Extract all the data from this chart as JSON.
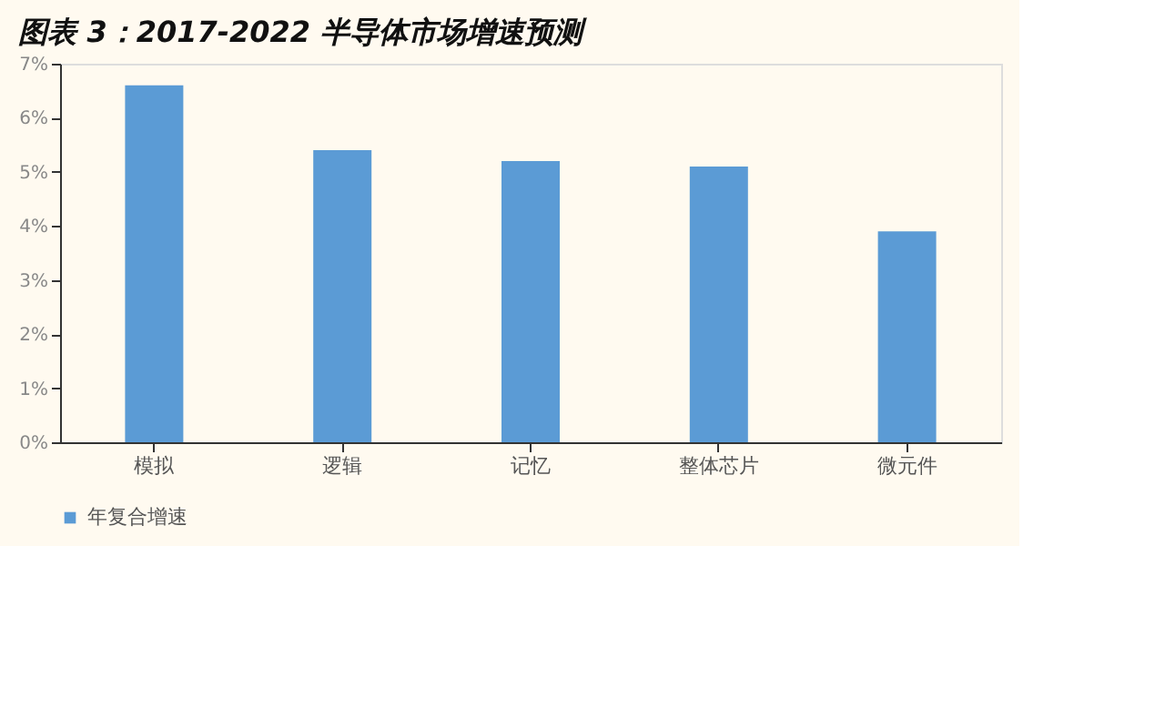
{
  "chart_data": {
    "type": "bar",
    "title": "图表 3：2017-2022 半导体市场增速预测",
    "categories": [
      "模拟",
      "逻辑",
      "记忆",
      "整体芯片",
      "微元件"
    ],
    "series": [
      {
        "name": "年复合增速",
        "color": "#5b9bd5",
        "values": [
          6.6,
          5.4,
          5.2,
          5.1,
          3.9
        ]
      }
    ],
    "ylim": [
      0,
      7
    ],
    "yticks": [
      {
        "value": 0,
        "label": "0%"
      },
      {
        "value": 1,
        "label": "1%"
      },
      {
        "value": 2,
        "label": "2%"
      },
      {
        "value": 3,
        "label": "3%"
      },
      {
        "value": 4,
        "label": "4%"
      },
      {
        "value": 5,
        "label": "5%"
      },
      {
        "value": 6,
        "label": "6%"
      },
      {
        "value": 7,
        "label": "7%"
      }
    ],
    "grid": false,
    "legend": "bottom"
  }
}
